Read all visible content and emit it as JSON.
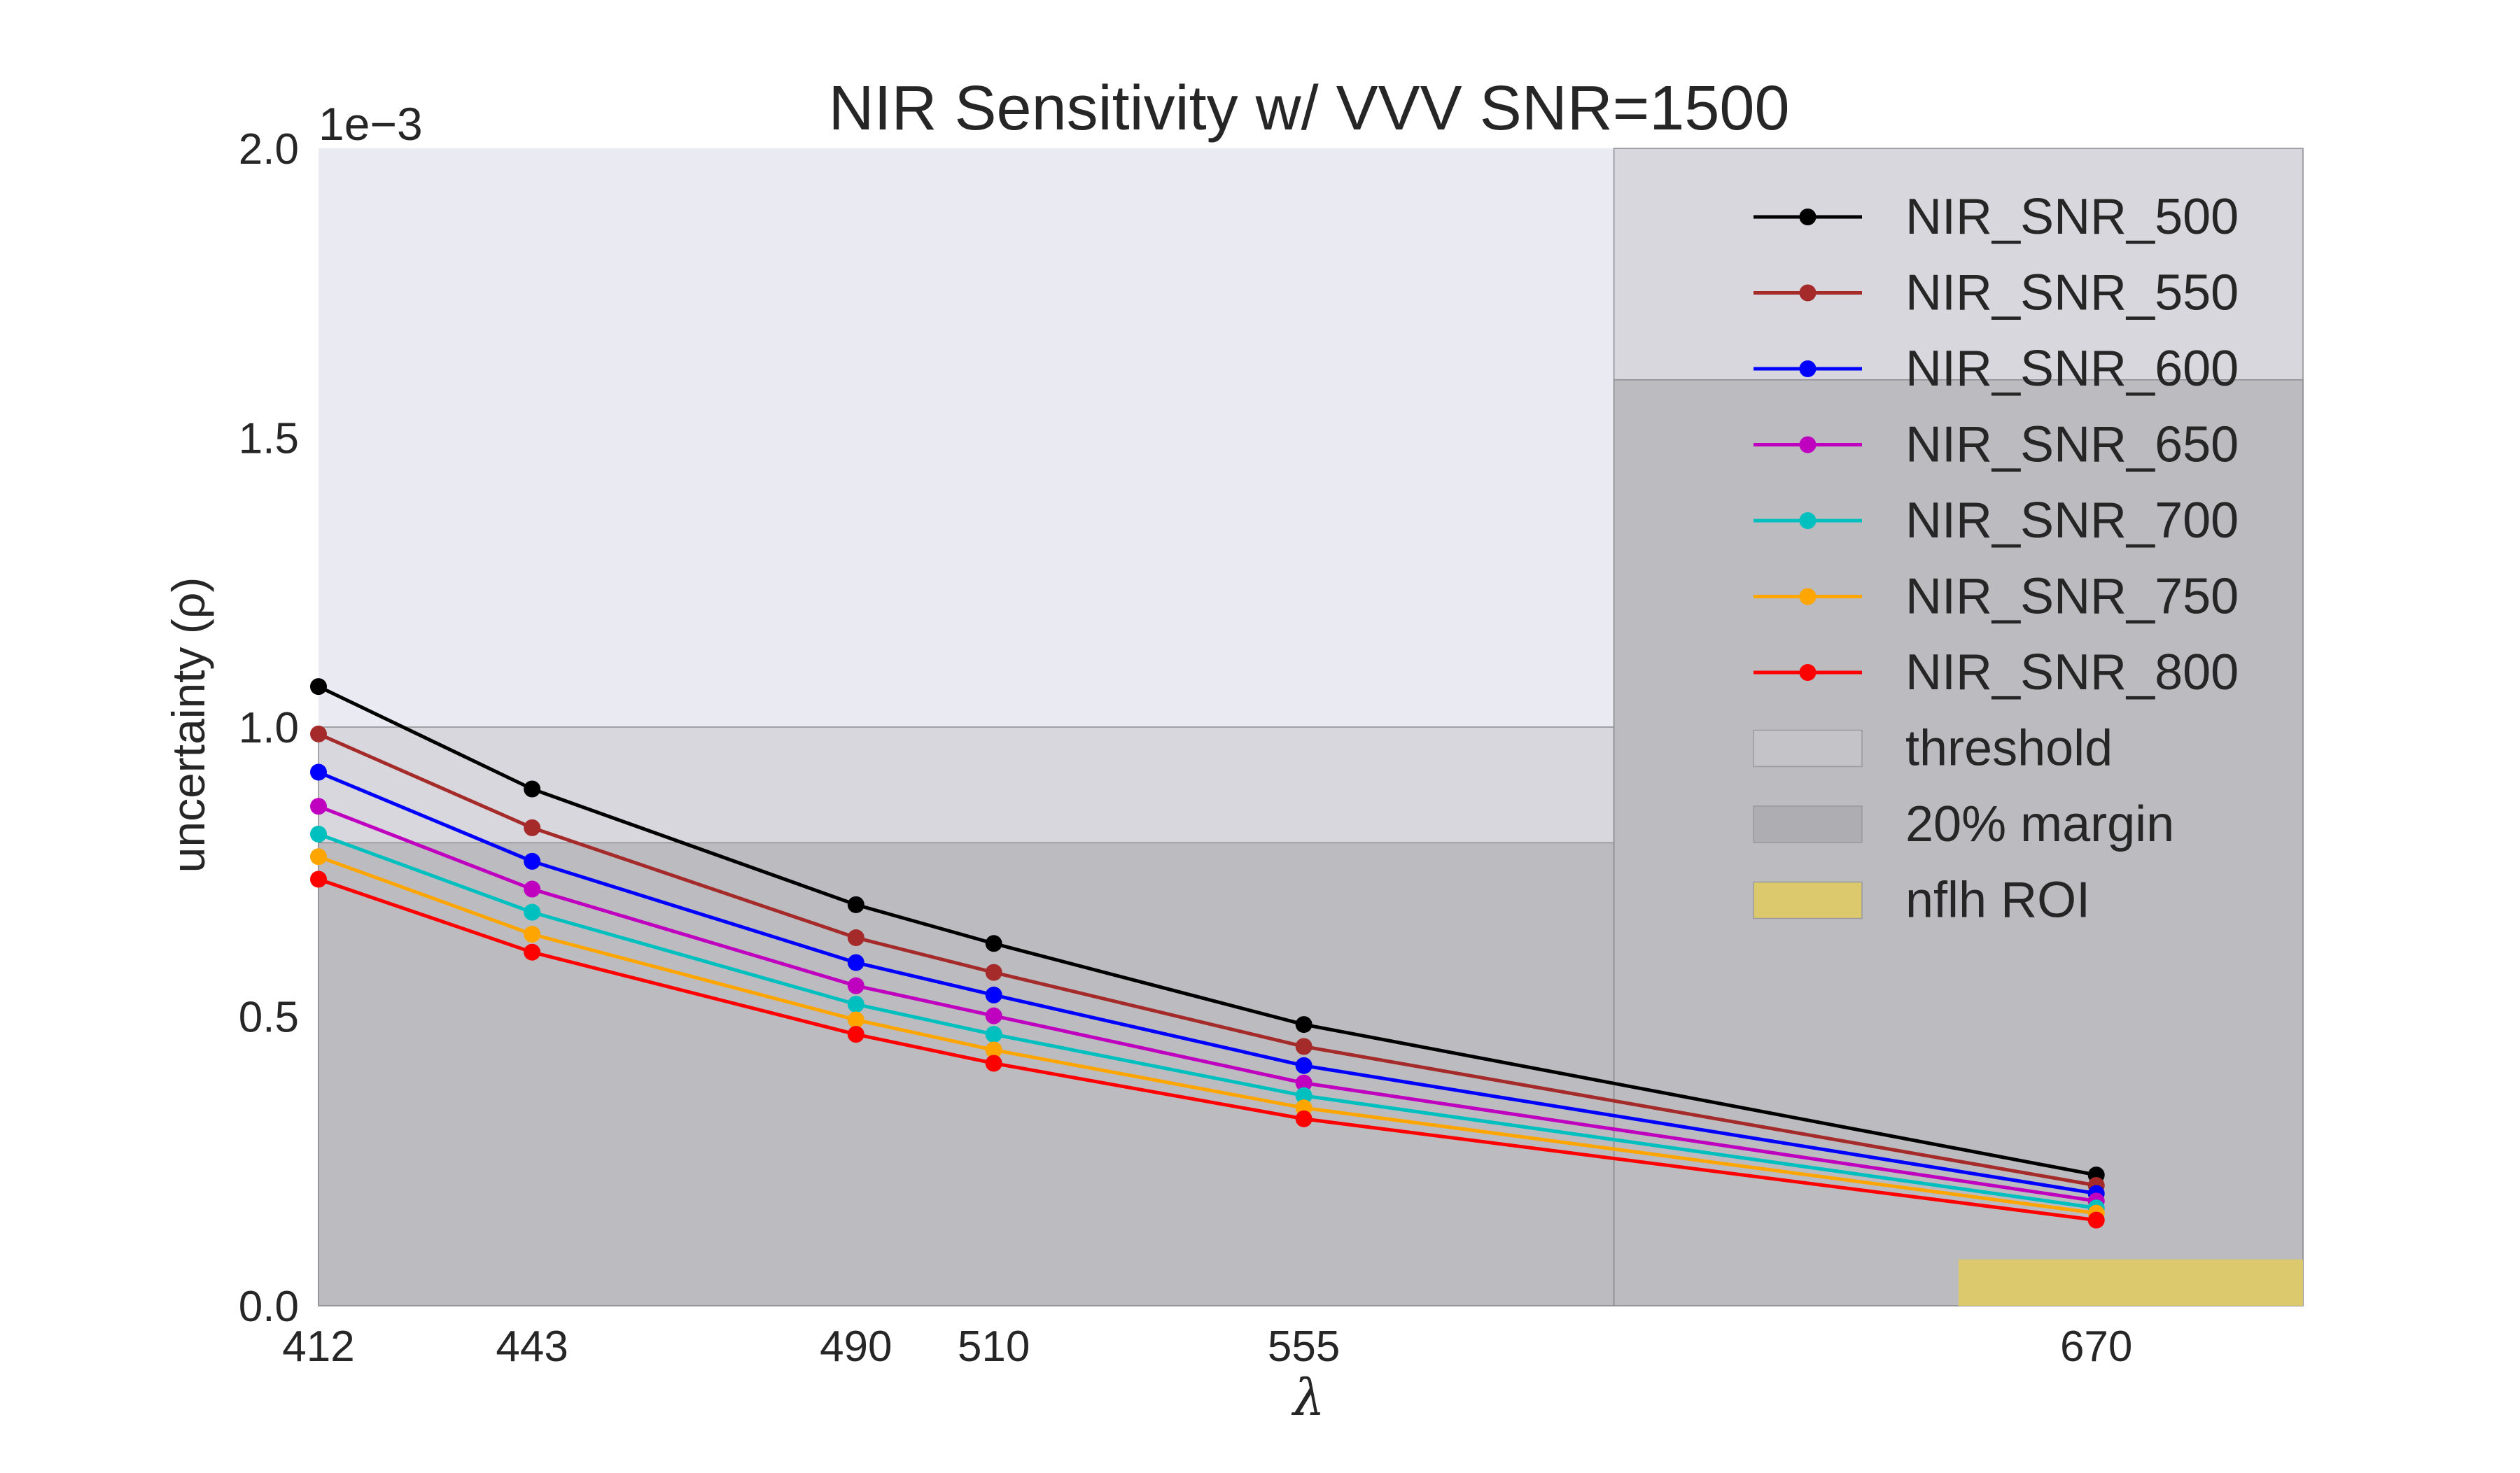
{
  "chart_data": {
    "type": "line",
    "title": "NIR Sensitivity w/ VVV SNR=1500",
    "xlabel": "λ",
    "ylabel": "uncertainty (ρ)",
    "y_scale_label": "1e−3",
    "x": [
      412,
      443,
      490,
      510,
      555,
      670
    ],
    "x_ticks": [
      "412",
      "443",
      "490",
      "510",
      "555",
      "670"
    ],
    "xlim": [
      412,
      700
    ],
    "ylim": [
      0,
      0.002
    ],
    "y_ticks": [
      0.0,
      0.0005,
      0.001,
      0.0015,
      0.002
    ],
    "y_tick_labels": [
      "0.0",
      "0.5",
      "1.0",
      "1.5",
      "2.0"
    ],
    "grid": false,
    "legend_position": "top-right",
    "series": [
      {
        "name": "NIR_SNR_500",
        "color": "#000000",
        "values": [
          0.00107,
          0.000893,
          0.000693,
          0.000626,
          0.000486,
          0.000226
        ]
      },
      {
        "name": "NIR_SNR_550",
        "color": "#a52a2a",
        "values": [
          0.000988,
          0.000826,
          0.000636,
          0.000576,
          0.000448,
          0.000208
        ]
      },
      {
        "name": "NIR_SNR_600",
        "color": "#0000ff",
        "values": [
          0.000922,
          0.000768,
          0.000593,
          0.000537,
          0.000415,
          0.000194
        ]
      },
      {
        "name": "NIR_SNR_650",
        "color": "#bf00bf",
        "values": [
          0.000863,
          0.00072,
          0.000553,
          0.000501,
          0.000385,
          0.000181
        ]
      },
      {
        "name": "NIR_SNR_700",
        "color": "#00bfbf",
        "values": [
          0.000815,
          0.00068,
          0.000521,
          0.000469,
          0.000363,
          0.000169
        ]
      },
      {
        "name": "NIR_SNR_750",
        "color": "#ffa500",
        "values": [
          0.000776,
          0.000642,
          0.000494,
          0.000442,
          0.000342,
          0.00016
        ]
      },
      {
        "name": "NIR_SNR_800",
        "color": "#ff0000",
        "values": [
          0.000737,
          0.000611,
          0.000469,
          0.000419,
          0.000323,
          0.000148
        ]
      }
    ],
    "regions": [
      {
        "name": "threshold",
        "color": "#c7c7cc",
        "opacity": 0.55,
        "bands": [
          {
            "x0": 412,
            "x1": 600,
            "y": 0.001
          },
          {
            "x0": 600,
            "x1": 700,
            "y": 0.002
          }
        ]
      },
      {
        "name": "20% margin",
        "color": "#a9a9ad",
        "opacity": 0.6,
        "bands": [
          {
            "x0": 412,
            "x1": 600,
            "y": 0.0008
          },
          {
            "x0": 600,
            "x1": 700,
            "y": 0.0016
          }
        ]
      },
      {
        "name": "nflh ROI",
        "color": "#dcc96e",
        "opacity": 1.0,
        "bands": [
          {
            "x0": 650,
            "x1": 700,
            "y": 8e-05
          }
        ]
      }
    ],
    "colors": {
      "plot_background": "#eaeaf2",
      "page_background": "#ffffff",
      "text": "#262626"
    }
  }
}
